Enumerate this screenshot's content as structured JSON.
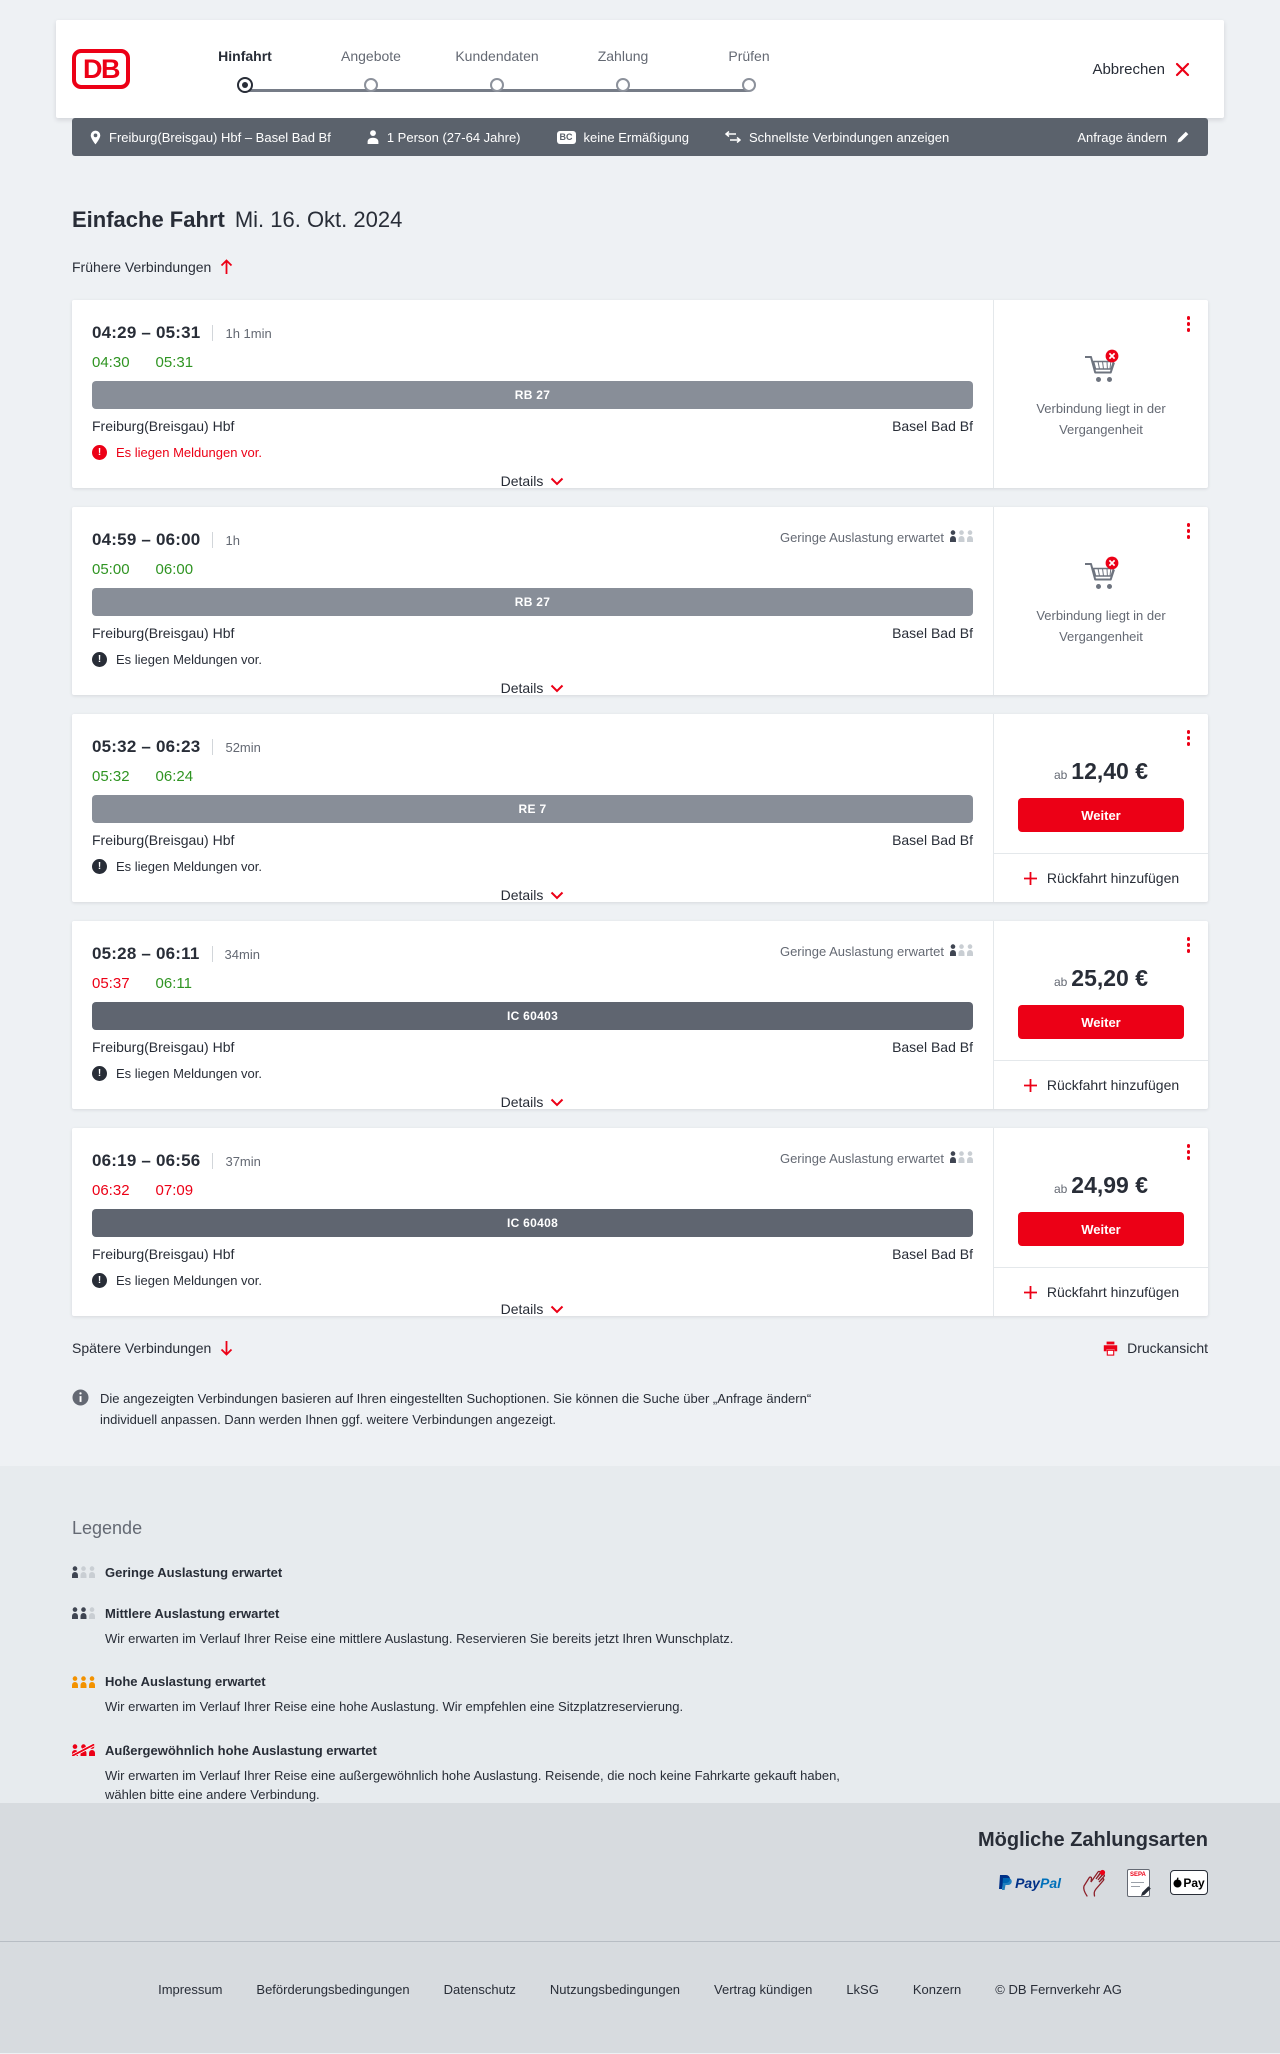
{
  "header": {
    "logo_text": "DB",
    "cancel_label": "Abbrechen",
    "steps": [
      {
        "label": "Hinfahrt",
        "active": true
      },
      {
        "label": "Angebote",
        "active": false
      },
      {
        "label": "Kundendaten",
        "active": false
      },
      {
        "label": "Zahlung",
        "active": false
      },
      {
        "label": "Prüfen",
        "active": false
      }
    ]
  },
  "journey_bar": {
    "route": "Freiburg(Breisgau) Hbf – Basel Bad Bf",
    "passengers": "1 Person (27-64 Jahre)",
    "bahncard_badge": "BC",
    "discount": "keine Ermäßigung",
    "sort_option": "Schnellste Verbindungen anzeigen",
    "edit_label": "Anfrage ändern"
  },
  "page": {
    "title_bold": "Einfache Fahrt",
    "title_date": "Mi. 16. Okt. 2024",
    "earlier_label": "Frühere Verbindungen",
    "later_label": "Spätere Verbindungen",
    "print_label": "Druckansicht",
    "info_text": "Die angezeigten Verbindungen basieren auf Ihren eingestellten Suchoptionen. Sie können die Suche über „Anfrage ändern“ individuell anpassen. Dann werden Ihnen ggf. weitere Verbindungen angezeigt."
  },
  "labels": {
    "details": "Details",
    "price_prefix": "ab",
    "weiter": "Weiter",
    "add_return": "Rückfahrt hinzufügen",
    "past_note": "Verbindung liegt in der Vergangenheit",
    "message": "Es liegen Meldungen vor.",
    "occupancy_low": "Geringe Auslastung erwartet"
  },
  "connections": [
    {
      "time_range": "04:29 – 05:31",
      "duration": "1h 1min",
      "rt_dep": "04:30",
      "rt_dep_status": "ontime",
      "rt_arr": "05:31",
      "rt_arr_status": "ontime",
      "train": "RB 27",
      "train_class": "regional",
      "from": "Freiburg(Breisgau) Hbf",
      "to": "Basel Bad Bf",
      "occupancy": null,
      "message_alert": true,
      "side": "past",
      "price": null
    },
    {
      "time_range": "04:59 – 06:00",
      "duration": "1h",
      "rt_dep": "05:00",
      "rt_dep_status": "ontime",
      "rt_arr": "06:00",
      "rt_arr_status": "ontime",
      "train": "RB 27",
      "train_class": "regional",
      "from": "Freiburg(Breisgau) Hbf",
      "to": "Basel Bad Bf",
      "occupancy": "Geringe Auslastung erwartet",
      "message_alert": false,
      "side": "past",
      "price": null
    },
    {
      "time_range": "05:32 – 06:23",
      "duration": "52min",
      "rt_dep": "05:32",
      "rt_dep_status": "ontime",
      "rt_arr": "06:24",
      "rt_arr_status": "ontime",
      "train": "RE 7",
      "train_class": "regional",
      "from": "Freiburg(Breisgau) Hbf",
      "to": "Basel Bad Bf",
      "occupancy": null,
      "message_alert": false,
      "side": "price",
      "price": "12,40 €"
    },
    {
      "time_range": "05:28 – 06:11",
      "duration": "34min",
      "rt_dep": "05:37",
      "rt_dep_status": "delayed",
      "rt_arr": "06:11",
      "rt_arr_status": "ontime",
      "train": "IC 60403",
      "train_class": "ic",
      "from": "Freiburg(Breisgau) Hbf",
      "to": "Basel Bad Bf",
      "occupancy": "Geringe Auslastung erwartet",
      "message_alert": false,
      "side": "price",
      "price": "25,20 €"
    },
    {
      "time_range": "06:19 – 06:56",
      "duration": "37min",
      "rt_dep": "06:32",
      "rt_dep_status": "delayed",
      "rt_arr": "07:09",
      "rt_arr_status": "delayed",
      "train": "IC 60408",
      "train_class": "ic",
      "from": "Freiburg(Breisgau) Hbf",
      "to": "Basel Bad Bf",
      "occupancy": "Geringe Auslastung erwartet",
      "message_alert": false,
      "side": "price",
      "price": "24,99 €"
    }
  ],
  "legend": {
    "title": "Legende",
    "items": [
      {
        "level": "low",
        "title": "Geringe Auslastung erwartet",
        "desc": null
      },
      {
        "level": "mid",
        "title": "Mittlere Auslastung erwartet",
        "desc": "Wir erwarten im Verlauf Ihrer Reise eine mittlere Auslastung. Reservieren Sie bereits jetzt Ihren Wunschplatz."
      },
      {
        "level": "high",
        "title": "Hohe Auslastung erwartet",
        "desc": "Wir erwarten im Verlauf Ihrer Reise eine hohe Auslastung. Wir empfehlen eine Sitzplatzreservierung."
      },
      {
        "level": "extreme",
        "title": "Außergewöhnlich hohe Auslastung erwartet",
        "desc": "Wir erwarten im Verlauf Ihrer Reise eine außergewöhnlich hohe Auslastung. Reisende, die noch keine Fahrkarte gekauft haben, wählen bitte eine andere Verbindung."
      }
    ]
  },
  "payment": {
    "title": "Mögliche Zahlungsarten",
    "methods": [
      "PayPal",
      "Lastschrift",
      "SEPA",
      "Apple Pay"
    ],
    "paypal_word_1": "Pay",
    "paypal_word_2": "Pal",
    "applepay_label": "Pay",
    "sepa_label": "SEPA"
  },
  "footer": {
    "links": [
      "Impressum",
      "Beförderungsbedingungen",
      "Datenschutz",
      "Nutzungsbedingungen",
      "Vertrag kündigen",
      "LkSG",
      "Konzern"
    ],
    "copyright": "© DB Fernverkehr AG"
  },
  "colors": {
    "brand_red": "#ec0016",
    "ontime_green": "#2f9422",
    "journey_bar_bg": "#5b626c",
    "regional_bar": "#888e98",
    "ic_bar": "#5f6570"
  }
}
